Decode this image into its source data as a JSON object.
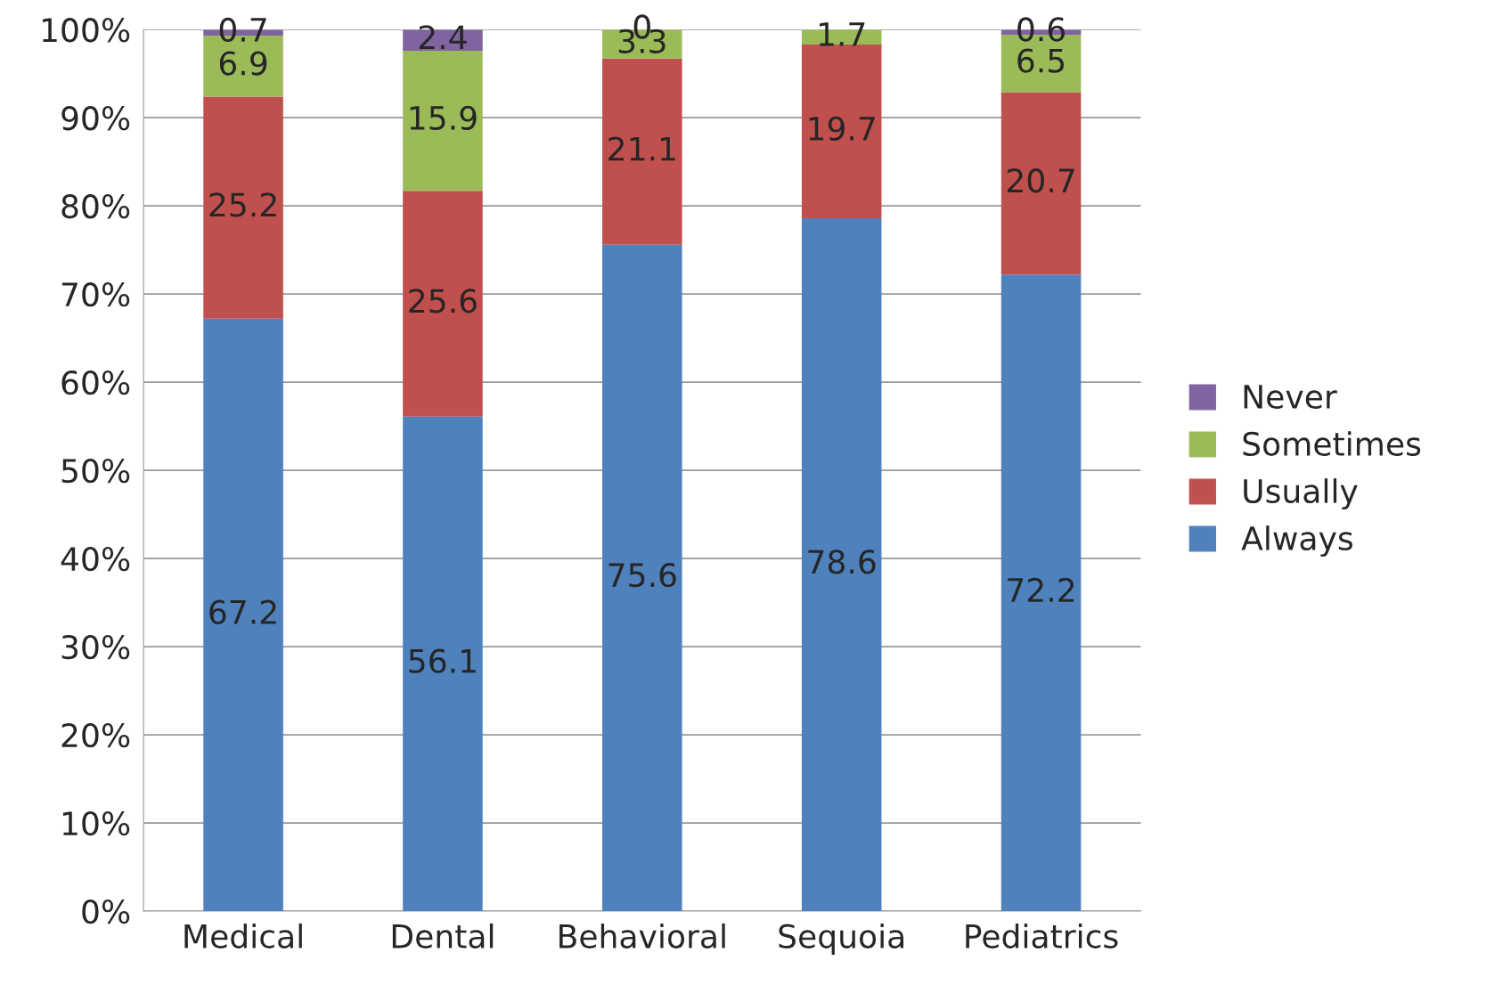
{
  "chart_data": {
    "type": "bar",
    "stacked": true,
    "categories": [
      "Medical",
      "Dental",
      "Behavioral",
      "Sequoia",
      "Pediatrics"
    ],
    "series": [
      {
        "name": "Always",
        "color": "#4f81bd",
        "values": [
          67.2,
          56.1,
          75.6,
          78.6,
          72.2
        ],
        "value_labels": [
          "67.2",
          "56.1",
          "75.6",
          "78.6",
          "72.2"
        ]
      },
      {
        "name": "Usually",
        "color": "#c0504d",
        "values": [
          25.2,
          25.6,
          21.1,
          19.7,
          20.7
        ],
        "value_labels": [
          "25.2",
          "25.6",
          "21.1",
          "19.7",
          "20.7"
        ]
      },
      {
        "name": "Sometimes",
        "color": "#9bbb59",
        "values": [
          6.9,
          15.9,
          3.3,
          1.7,
          6.5
        ],
        "value_labels": [
          "6.9",
          "15.9",
          "3.3",
          "1.7",
          "6.5"
        ]
      },
      {
        "name": "Never",
        "color": "#8064a2",
        "values": [
          0.7,
          2.4,
          0,
          0,
          0.6
        ],
        "value_labels": [
          "0.7",
          "2.4",
          "0",
          null,
          "0.6"
        ]
      }
    ],
    "ylim": [
      0,
      100
    ],
    "yticks": [
      {
        "value": 0,
        "label": "0%"
      },
      {
        "value": 10,
        "label": "10%"
      },
      {
        "value": 20,
        "label": "20%"
      },
      {
        "value": 30,
        "label": "30%"
      },
      {
        "value": 40,
        "label": "40%"
      },
      {
        "value": 50,
        "label": "50%"
      },
      {
        "value": 60,
        "label": "60%"
      },
      {
        "value": 70,
        "label": "70%"
      },
      {
        "value": 80,
        "label": "80%"
      },
      {
        "value": 90,
        "label": "90%"
      },
      {
        "value": 100,
        "label": "100%"
      }
    ],
    "grid": "y",
    "legend": "right"
  }
}
